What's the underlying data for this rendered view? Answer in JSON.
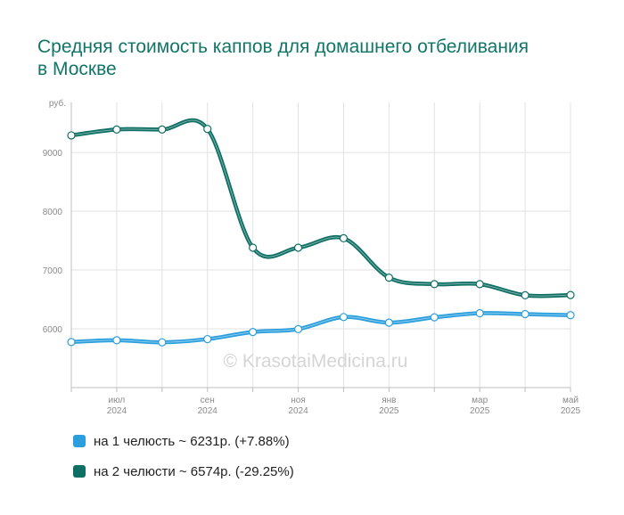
{
  "title": "Средняя стоимость каппов для домашнего отбеливания в Москве",
  "watermark": "© KrasotaiMedicina.ru",
  "chart_data": {
    "type": "line",
    "title": "Средняя стоимость каппов для домашнего отбеливания в Москве",
    "ylabel": "руб.",
    "ylim": [
      5000,
      9850
    ],
    "yticks": [
      6000,
      7000,
      8000,
      9000
    ],
    "x": [
      "2024-06",
      "2024-07",
      "2024-08",
      "2024-09",
      "2024-10",
      "2024-11",
      "2024-12",
      "2025-01",
      "2025-02",
      "2025-03",
      "2025-04",
      "2025-05"
    ],
    "xtick_labels": [
      {
        "index": 1,
        "month": "июл",
        "year": "2024"
      },
      {
        "index": 3,
        "month": "сен",
        "year": "2024"
      },
      {
        "index": 5,
        "month": "ноя",
        "year": "2024"
      },
      {
        "index": 7,
        "month": "янв",
        "year": "2025"
      },
      {
        "index": 9,
        "month": "мар",
        "year": "2025"
      },
      {
        "index": 11,
        "month": "май",
        "year": "2025"
      }
    ],
    "grid": true,
    "legend_position": "bottom-left",
    "series": [
      {
        "name": "на 1 челюсть",
        "legend_label": "на 1 челюсть ~ 6231р. (+7.88%)",
        "color": "#2b9fde",
        "values": [
          5775,
          5805,
          5770,
          5825,
          5945,
          5995,
          6200,
          6105,
          6195,
          6265,
          6250,
          6231
        ]
      },
      {
        "name": "на 2 челюсти",
        "legend_label": "на 2 челюсти ~ 6574р. (-29.25%)",
        "color": "#0e6f64",
        "values": [
          9290,
          9390,
          9390,
          9400,
          7380,
          7380,
          7540,
          6870,
          6760,
          6760,
          6570,
          6574
        ]
      }
    ]
  }
}
